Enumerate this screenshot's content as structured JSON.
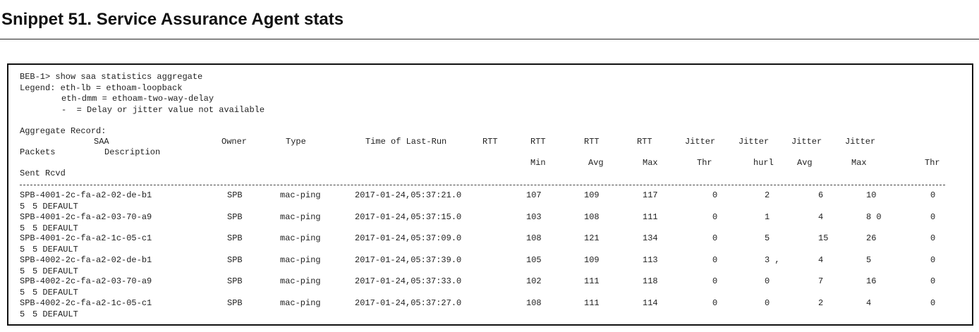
{
  "title": "Snippet 51. Service Assurance Agent stats",
  "console": {
    "command": "BEB-1> show saa statistics aggregate",
    "legend": [
      "Legend: eth-lb = ethoam-loopback",
      "eth-dmm = ethoam-two-way-delay",
      "-  = Delay or jitter value not available"
    ],
    "section": "Aggregate Record:",
    "header": {
      "row1": [
        "SAA",
        "Owner",
        "Type",
        "Time of Last-Run",
        "RTT",
        "RTT",
        "RTT",
        "RTT",
        "Jitter",
        "Jitter",
        "Jitter",
        "Jitter"
      ],
      "row2": [
        "Packets",
        "Description"
      ],
      "row3": [
        "Min",
        "Avg",
        "Max",
        "Thr",
        "hurl",
        "Avg",
        "Max",
        "Thr"
      ],
      "row4": "Sent Rcvd"
    },
    "rows": [
      {
        "cells": [
          "SPB-4001-2c-fa-a2-02-de-b1",
          "SPB",
          "mac-ping",
          "2017-01-24,05:37:21.0",
          "107",
          "109",
          "117",
          "0",
          "2",
          "6",
          "10",
          "0"
        ],
        "packets": [
          "5",
          "5 DEFAULT"
        ]
      },
      {
        "cells": [
          "SPB-4001-2c-fa-a2-03-70-a9",
          "SPB",
          "mac-ping",
          "2017-01-24,05:37:15.0",
          "103",
          "108",
          "111",
          "0",
          "1",
          "4",
          "8 0",
          "0"
        ],
        "packets": [
          "5",
          "5 DEFAULT"
        ]
      },
      {
        "cells": [
          "SPB-4001-2c-fa-a2-1c-05-c1",
          "SPB",
          "mac-ping",
          "2017-01-24,05:37:09.0",
          "108",
          "121",
          "134",
          "0",
          "5",
          "15",
          "26",
          "0"
        ],
        "packets": [
          "5",
          "5 DEFAULT"
        ]
      },
      {
        "cells": [
          "SPB-4002-2c-fa-a2-02-de-b1",
          "SPB",
          "mac-ping",
          "2017-01-24,05:37:39.0",
          "105",
          "109",
          "113",
          "0",
          "3 ,",
          "4",
          "5",
          "0"
        ],
        "packets": [
          "5",
          "5 DEFAULT"
        ]
      },
      {
        "cells": [
          "SPB-4002-2c-fa-a2-03-70-a9",
          "SPB",
          "mac-ping",
          "2017-01-24,05:37:33.0",
          "102",
          "111",
          "118",
          "0",
          "0",
          "7",
          "16",
          "0"
        ],
        "packets": [
          "5",
          "5 DEFAULT"
        ]
      },
      {
        "cells": [
          "SPB-4002-2c-fa-a2-1c-05-c1",
          "SPB",
          "mac-ping",
          "2017-01-24,05:37:27.0",
          "108",
          "111",
          "114",
          "0",
          "0",
          "2",
          "4",
          "0"
        ],
        "packets": [
          "5",
          "5 DEFAULT"
        ]
      }
    ]
  }
}
